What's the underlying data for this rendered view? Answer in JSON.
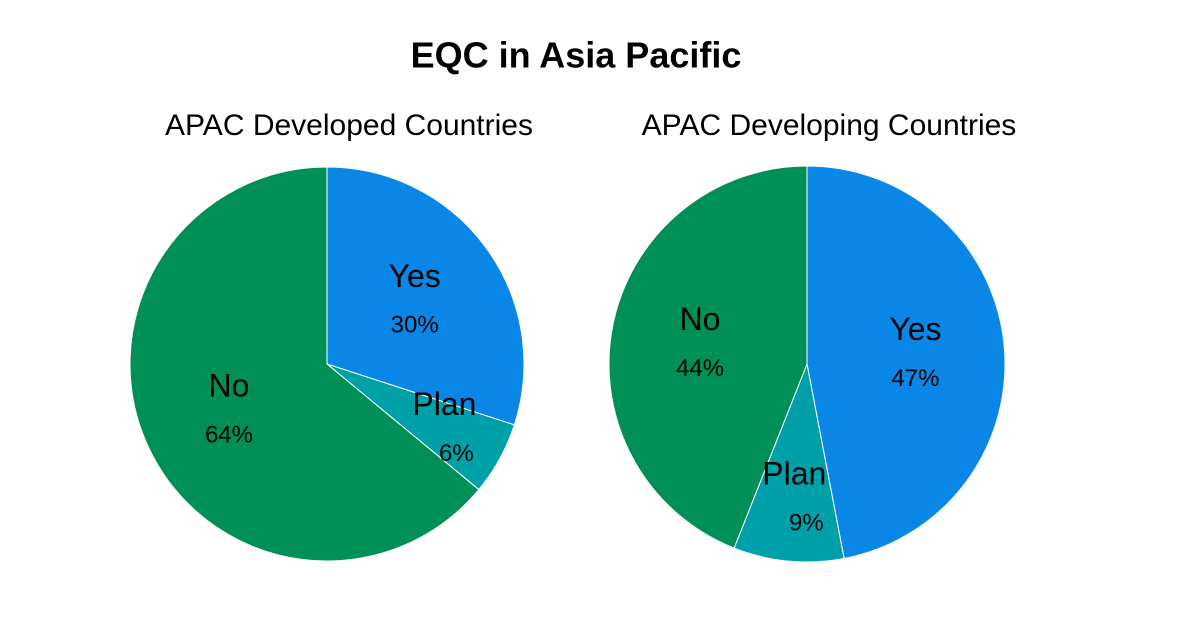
{
  "title": "EQC in Asia Pacific",
  "chart_data": [
    {
      "type": "pie",
      "title": "APAC Developed Countries",
      "categories": [
        "Yes",
        "Plan",
        "No"
      ],
      "values": [
        30,
        6,
        64
      ],
      "value_labels": [
        "30%",
        "6%",
        "64%"
      ],
      "colors": [
        "#0a86e6",
        "#00a0a8",
        "#009057"
      ]
    },
    {
      "type": "pie",
      "title": "APAC Developing Countries",
      "categories": [
        "Yes",
        "Plan",
        "No"
      ],
      "values": [
        47,
        9,
        44
      ],
      "value_labels": [
        "47%",
        "9%",
        "44%"
      ],
      "colors": [
        "#0a86e6",
        "#00a0a8",
        "#009057"
      ]
    }
  ]
}
